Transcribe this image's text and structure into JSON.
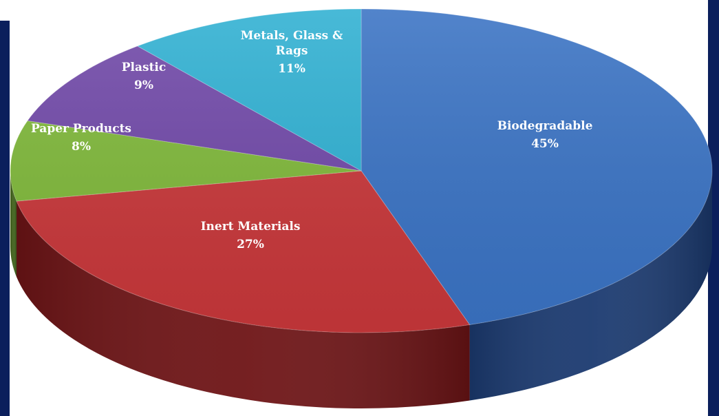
{
  "chart_data": {
    "type": "pie",
    "style": "3d",
    "start_at": "12 o'clock",
    "direction": "clockwise",
    "slices": [
      {
        "label": "Biodegradable",
        "value": 45,
        "value_label": "45%",
        "color": "#3a73c4",
        "side_color": "#1b3a70"
      },
      {
        "label": "Inert Materials",
        "value": 27,
        "value_label": "27%",
        "color": "#c8373a",
        "side_color": "#6e1416"
      },
      {
        "label": "Paper Products",
        "value": 8,
        "value_label": "8%",
        "color": "#7fb83a",
        "side_color": "#40621a"
      },
      {
        "label": "Plastic",
        "value": 9,
        "value_label": "9%",
        "color": "#7048a8",
        "side_color": "#3a2260"
      },
      {
        "label": "Metals, Glass & Rags",
        "value": 11,
        "value_label": "11%",
        "color": "#2fb0d2",
        "side_color": "#126a80"
      }
    ]
  }
}
